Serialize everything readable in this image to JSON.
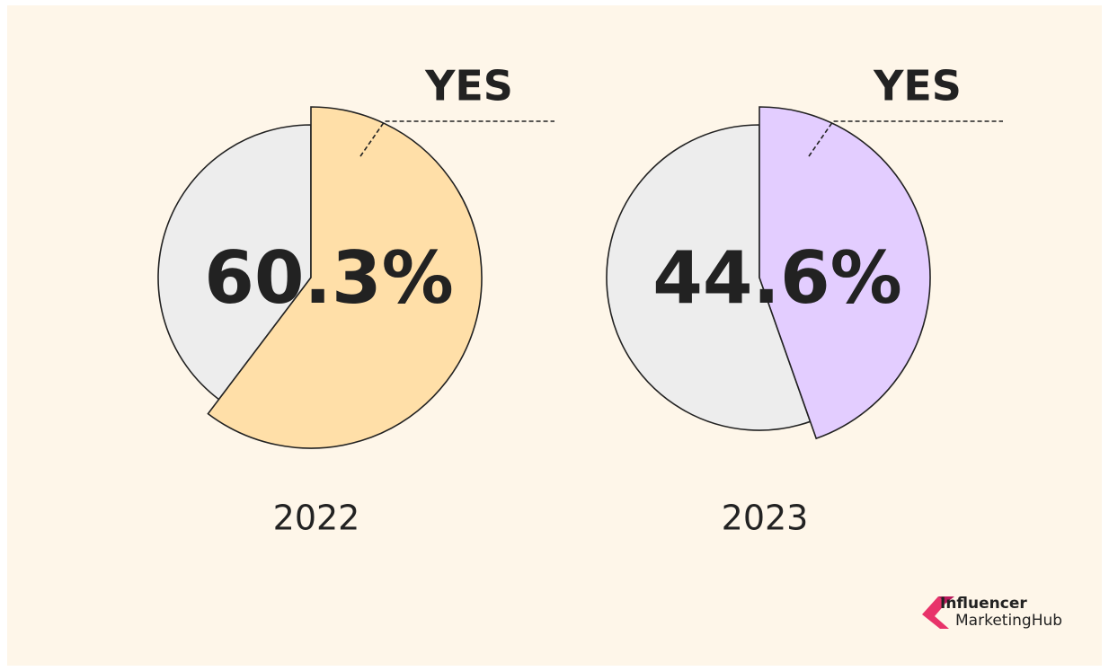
{
  "chart_data": [
    {
      "type": "pie",
      "title": "2022",
      "categories": [
        "YES",
        null
      ],
      "values": [
        60.3,
        39.7
      ],
      "value_labels": [
        "60.3%",
        null
      ],
      "colors": [
        "#ffdfa8",
        "#ededed"
      ]
    },
    {
      "type": "pie",
      "title": "2023",
      "categories": [
        "YES",
        null
      ],
      "values": [
        44.6,
        55.4
      ],
      "value_labels": [
        "44.6%",
        null
      ],
      "colors": [
        "#e3cdff",
        "#ededed"
      ]
    }
  ],
  "logo": {
    "line1": "Influencer",
    "line2": "MarketingHub"
  }
}
